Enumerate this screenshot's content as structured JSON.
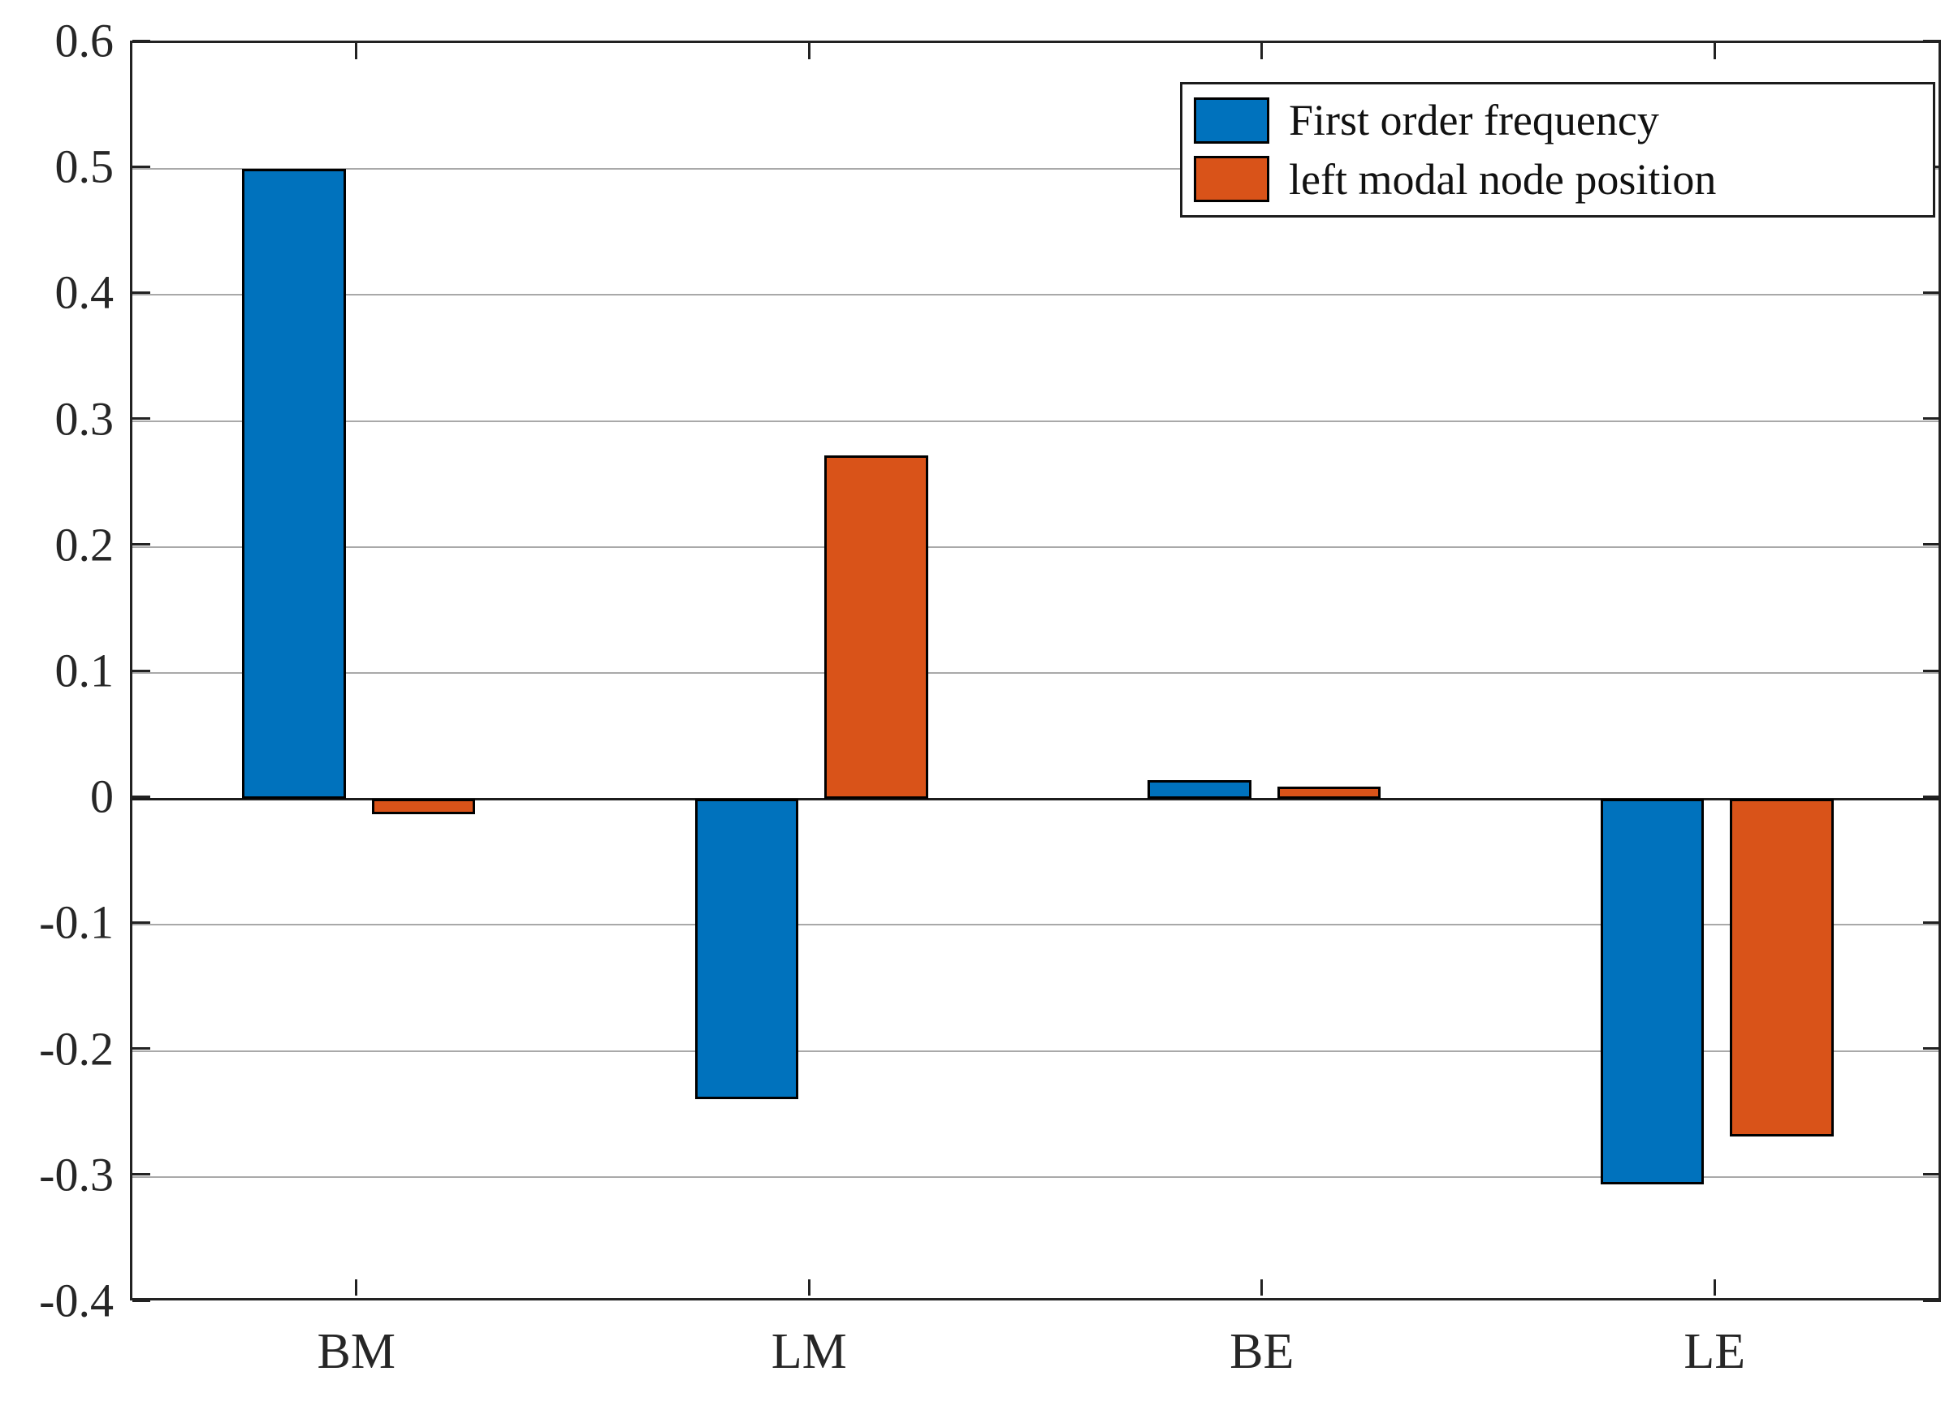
{
  "chart_data": {
    "type": "bar",
    "title": "",
    "xlabel": "",
    "ylabel": "",
    "categories": [
      "BM",
      "LM",
      "BE",
      "LE"
    ],
    "series": [
      {
        "name": "First order frequency",
        "color": "#0072BD",
        "values": [
          0.5,
          -0.238,
          0.015,
          -0.306
        ]
      },
      {
        "name": "left modal node position",
        "color": "#D95319",
        "values": [
          -0.012,
          0.273,
          0.01,
          -0.268
        ]
      }
    ],
    "ylim": [
      -0.4,
      0.6
    ],
    "ytick_step": 0.1,
    "ytick_labels": [
      "0.6",
      "0.5",
      "0.4",
      "0.3",
      "0.2",
      "0.1",
      "0",
      "-0.1",
      "-0.2",
      "-0.3",
      "-0.4"
    ],
    "grid": "horizontal",
    "grid_color": "#a9a9a9",
    "axis_color": "#222222",
    "bar_edge_color": "#000000",
    "legend_position": "top-right"
  }
}
